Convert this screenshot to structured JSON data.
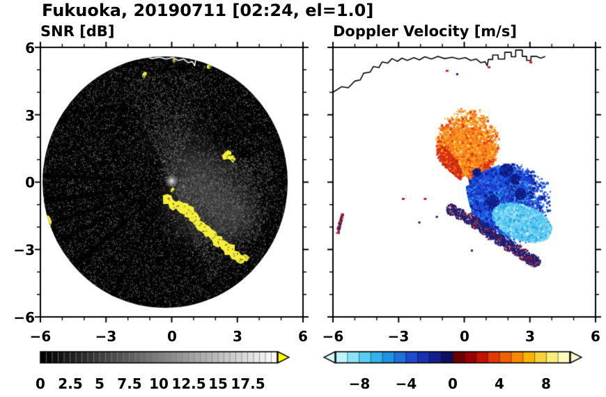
{
  "title": "Fukuoka, 20190711 [02:24, el=1.0]",
  "labels": {
    "x_ticks": [
      "−6",
      "−3",
      "0",
      "3",
      "6"
    ],
    "y_ticks": [
      "6",
      "3",
      "0",
      "−3",
      "−6"
    ],
    "snr_cbar_ticks": [
      "0",
      "2.5",
      "5",
      "7.5",
      "10",
      "12.5",
      "15",
      "17.5"
    ],
    "vel_cbar_ticks": [
      "−8",
      "−4",
      "0",
      "4",
      "8"
    ]
  },
  "chart_data": {
    "type": "heatmap",
    "title": "Fukuoka, 20190711 [02:24, el=1.0]",
    "station": "Fukuoka",
    "date": "20190711",
    "time": "02:24",
    "elevation": "el=1.0",
    "coastline": [
      [
        -6.0,
        4.0
      ],
      [
        -5.6,
        4.25
      ],
      [
        -5.3,
        4.2
      ],
      [
        -5.0,
        4.5
      ],
      [
        -4.75,
        4.55
      ],
      [
        -4.6,
        4.85
      ],
      [
        -4.3,
        4.9
      ],
      [
        -4.15,
        5.15
      ],
      [
        -3.9,
        5.1
      ],
      [
        -3.75,
        5.35
      ],
      [
        -3.5,
        5.3
      ],
      [
        -3.3,
        5.5
      ],
      [
        -3.05,
        5.38
      ],
      [
        -2.85,
        5.52
      ],
      [
        -2.6,
        5.42
      ],
      [
        -2.3,
        5.54
      ],
      [
        -2.05,
        5.44
      ],
      [
        -1.8,
        5.58
      ],
      [
        -1.5,
        5.48
      ],
      [
        -1.2,
        5.6
      ],
      [
        -0.9,
        5.5
      ],
      [
        -0.55,
        5.56
      ],
      [
        -0.25,
        5.48
      ],
      [
        0.05,
        5.54
      ],
      [
        0.3,
        5.42
      ],
      [
        0.55,
        5.48
      ],
      [
        0.75,
        5.32
      ],
      [
        0.95,
        5.36
      ],
      [
        1.05,
        5.18
      ],
      [
        1.1,
        5.46
      ],
      [
        1.3,
        5.46
      ],
      [
        1.3,
        5.66
      ],
      [
        1.55,
        5.66
      ],
      [
        1.55,
        5.48
      ],
      [
        1.85,
        5.48
      ],
      [
        1.85,
        5.78
      ],
      [
        2.15,
        5.78
      ],
      [
        2.15,
        5.58
      ],
      [
        2.35,
        5.58
      ],
      [
        2.35,
        5.88
      ],
      [
        2.65,
        5.88
      ],
      [
        2.65,
        5.6
      ],
      [
        2.85,
        5.6
      ],
      [
        2.85,
        5.42
      ],
      [
        3.05,
        5.42
      ],
      [
        3.05,
        5.6
      ],
      [
        3.3,
        5.6
      ],
      [
        3.5,
        5.52
      ],
      [
        3.7,
        5.6
      ]
    ],
    "panels": [
      {
        "title": "SNR [dB]",
        "xlim": [
          -6,
          6
        ],
        "ylim": [
          -6,
          6
        ],
        "x_ticks": [
          -6,
          -3,
          0,
          3,
          6
        ],
        "y_ticks": [
          -6,
          -3,
          0,
          3,
          6
        ],
        "colorbar": {
          "range": [
            0,
            20
          ],
          "tick_values": [
            0,
            2.5,
            5,
            7.5,
            10,
            12.5,
            15,
            17.5
          ],
          "style": "grayscale",
          "over_color": "#ffff00"
        },
        "features": {
          "disk": {
            "cx": -0.3,
            "cy": 0,
            "r": 5.6,
            "color": "#000000"
          },
          "haze": [
            {
              "x": 1.7,
              "y": -0.7,
              "r": 2.6,
              "a": 0.38
            },
            {
              "x": 0.9,
              "y": 0.7,
              "r": 1.6,
              "a": 0.18
            },
            {
              "x": 2.9,
              "y": -1.6,
              "r": 1.5,
              "a": 0.22
            },
            {
              "x": 0.2,
              "y": 2.0,
              "r": 2.0,
              "a": 0.1
            }
          ],
          "haze_sectors": [
            {
              "a0": -70,
              "a1": 18,
              "rmax": 4.3,
              "n": 5200
            },
            {
              "a0": 70,
              "a1": 118,
              "rmax": 4.6,
              "n": 2200
            }
          ],
          "rays": [
            {
              "a": 177,
              "w": 2.0
            },
            {
              "a": 188.5,
              "w": 2.4
            },
            {
              "a": 198.5,
              "w": 1.7
            },
            {
              "a": 207,
              "w": 1.5
            },
            {
              "a": 220,
              "w": 2.4
            },
            {
              "a": 242,
              "w": 1.5
            }
          ],
          "yellow_blobs": [
            {
              "x": -0.2,
              "y": -0.8,
              "s": 0.28
            },
            {
              "x": 0.05,
              "y": -1.0,
              "s": 0.26
            },
            {
              "x": 0.3,
              "y": -1.08,
              "s": 0.24
            },
            {
              "x": 0.55,
              "y": -1.18,
              "s": 0.28
            },
            {
              "x": 0.8,
              "y": -1.32,
              "s": 0.3
            },
            {
              "x": 1.0,
              "y": -1.52,
              "s": 0.28
            },
            {
              "x": 1.12,
              "y": -1.76,
              "s": 0.26
            },
            {
              "x": 1.32,
              "y": -1.96,
              "s": 0.28
            },
            {
              "x": 1.56,
              "y": -2.12,
              "s": 0.32
            },
            {
              "x": 1.86,
              "y": -2.36,
              "s": 0.28
            },
            {
              "x": 2.12,
              "y": -2.6,
              "s": 0.32
            },
            {
              "x": 2.42,
              "y": -2.82,
              "s": 0.28
            },
            {
              "x": 2.66,
              "y": -3.02,
              "s": 0.3
            },
            {
              "x": 2.9,
              "y": -3.26,
              "s": 0.27
            },
            {
              "x": 3.15,
              "y": -3.42,
              "s": 0.24
            },
            {
              "x": 3.4,
              "y": -3.35,
              "s": 0.18
            },
            {
              "x": -5.6,
              "y": -1.78,
              "s": 0.3,
              "sx": 0.5,
              "sy": 1.5
            },
            {
              "x": 2.55,
              "y": 1.18,
              "s": 0.27
            },
            {
              "x": 2.78,
              "y": 1.04,
              "s": 0.18
            },
            {
              "x": -1.25,
              "y": 4.78,
              "s": 0.15
            },
            {
              "x": 1.7,
              "y": 5.15,
              "s": 0.12
            },
            {
              "x": 0.1,
              "y": 5.4,
              "s": 0.1
            },
            {
              "x": 0.05,
              "y": -0.35,
              "s": 0.12
            }
          ],
          "center": {
            "x": 0,
            "y": 0.05
          }
        }
      },
      {
        "title": "Doppler Velocity [m/s]",
        "xlim": [
          -6,
          6
        ],
        "ylim": [
          -6,
          6
        ],
        "x_ticks": [
          -6,
          -3,
          0,
          3,
          6
        ],
        "y_ticks": [
          -6,
          -3,
          0,
          3,
          6
        ],
        "colorbar": {
          "range": [
            -10,
            10
          ],
          "tick_values": [
            -8,
            -4,
            0,
            4,
            8
          ],
          "colors": [
            "#bdf3fa",
            "#8ce3f7",
            "#5bcdf2",
            "#34b2ec",
            "#1f93e2",
            "#1f70d8",
            "#1f4ccd",
            "#1930b4",
            "#131f8c",
            "#0c1060",
            "#6b0000",
            "#9a0000",
            "#c21200",
            "#e23a00",
            "#f26100",
            "#fa8900",
            "#fab300",
            "#f8d23a",
            "#f9ec7a",
            "#fdfac0"
          ],
          "under_color": "#d5fbfb",
          "over_color": "#fdfbd0"
        },
        "features": {
          "center_hole": {
            "x": 0.03,
            "y": 0.1,
            "r": 0.16
          },
          "fans": [
            {
              "name": "outbound-orange",
              "a0": 30,
              "a1": 143,
              "rbase": 0.3,
              "rspan": 2.3,
              "n": 5200,
              "cx": 0,
              "cy": 0.08,
              "colors": [
                [
                  "#fb8c1e",
                  0.45
                ],
                [
                  "#f2711c",
                  0.65
                ],
                [
                  "#e03c14",
                  0.8
                ],
                [
                  "#ffb428",
                  0.92
                ],
                [
                  "#ffd84b",
                  1
                ]
              ]
            },
            {
              "name": "orange-red-edge",
              "a0": 112,
              "a1": 146,
              "rbase": 0.25,
              "rspan": 1.35,
              "n": 750,
              "cx": 0,
              "cy": 0.05,
              "colors": [
                [
                  "#d83014",
                  0.7
                ],
                [
                  "#f2711c",
                  0.9
                ],
                [
                  "#a01208",
                  1
                ]
              ]
            },
            {
              "name": "orange-red-right",
              "a0": 28,
              "a1": 46,
              "rbase": 0.3,
              "rspan": 1.1,
              "n": 450,
              "cx": 0,
              "cy": 0.05,
              "colors": [
                [
                  "#d83014",
                  0.75
                ],
                [
                  "#fb8c1e",
                  1
                ]
              ]
            },
            {
              "name": "inbound-blue",
              "a0": -80,
              "a1": 32,
              "rbase": 0.3,
              "rspan": 3.0,
              "n": 7600,
              "cx": 0.05,
              "cy": 0,
              "colors": [
                [
                  "#1f53e0",
                  0.4
                ],
                [
                  "#1a38cc",
                  0.6
                ],
                [
                  "#0f1e96",
                  0.76
                ],
                [
                  "#3c78f0",
                  0.88
                ],
                [
                  "#19a2ea",
                  0.96
                ],
                [
                  "#0a1260",
                  1
                ]
              ]
            }
          ],
          "cyan_patch": {
            "cx": 2.6,
            "cy": -1.75,
            "rx": 1.4,
            "ry": 0.75,
            "rot": -20,
            "n": 2600,
            "colors": [
              [
                "#55c8f0",
                0.5
              ],
              [
                "#8edcf8",
                0.78
              ],
              [
                "#2aa6e4",
                0.92
              ],
              [
                "#c9eefb",
                1
              ]
            ]
          },
          "navy_clusters": [
            {
              "x": 1.9,
              "y": 0.55,
              "s": 0.3
            },
            {
              "x": 1.25,
              "y": -0.85,
              "s": 0.3
            },
            {
              "x": 2.55,
              "y": -0.5,
              "s": 0.26
            },
            {
              "x": 0.55,
              "y": 0.45,
              "s": 0.18
            },
            {
              "x": 2.3,
              "y": 0.15,
              "s": 0.22
            }
          ],
          "clutter_arc": [
            {
              "x": -0.6,
              "y": -1.2
            },
            {
              "x": -0.2,
              "y": -1.4
            },
            {
              "x": 0.2,
              "y": -1.6
            },
            {
              "x": 0.5,
              "y": -1.8
            },
            {
              "x": 0.9,
              "y": -2.05
            },
            {
              "x": 1.2,
              "y": -2.3
            },
            {
              "x": 1.6,
              "y": -2.55
            },
            {
              "x": 2.0,
              "y": -2.8
            },
            {
              "x": 2.4,
              "y": -3.0
            },
            {
              "x": 2.7,
              "y": -3.2
            },
            {
              "x": 3.0,
              "y": -3.4
            },
            {
              "x": 3.2,
              "y": -3.5
            }
          ],
          "edge_blob": {
            "x": -5.7,
            "y": -1.8
          },
          "red_specks": [
            {
              "x": -0.85,
              "y": 5.0
            },
            {
              "x": 1.07,
              "y": 5.16
            },
            {
              "x": 2.98,
              "y": 5.38
            },
            {
              "x": -2.85,
              "y": -0.7
            },
            {
              "x": -1.85,
              "y": -0.7
            }
          ],
          "navy_specks": [
            {
              "x": -0.37,
              "y": 4.85
            },
            {
              "x": -2.1,
              "y": -1.75
            },
            {
              "x": -1.3,
              "y": -1.5
            },
            {
              "x": 0.3,
              "y": -3.0
            }
          ]
        }
      }
    ]
  }
}
